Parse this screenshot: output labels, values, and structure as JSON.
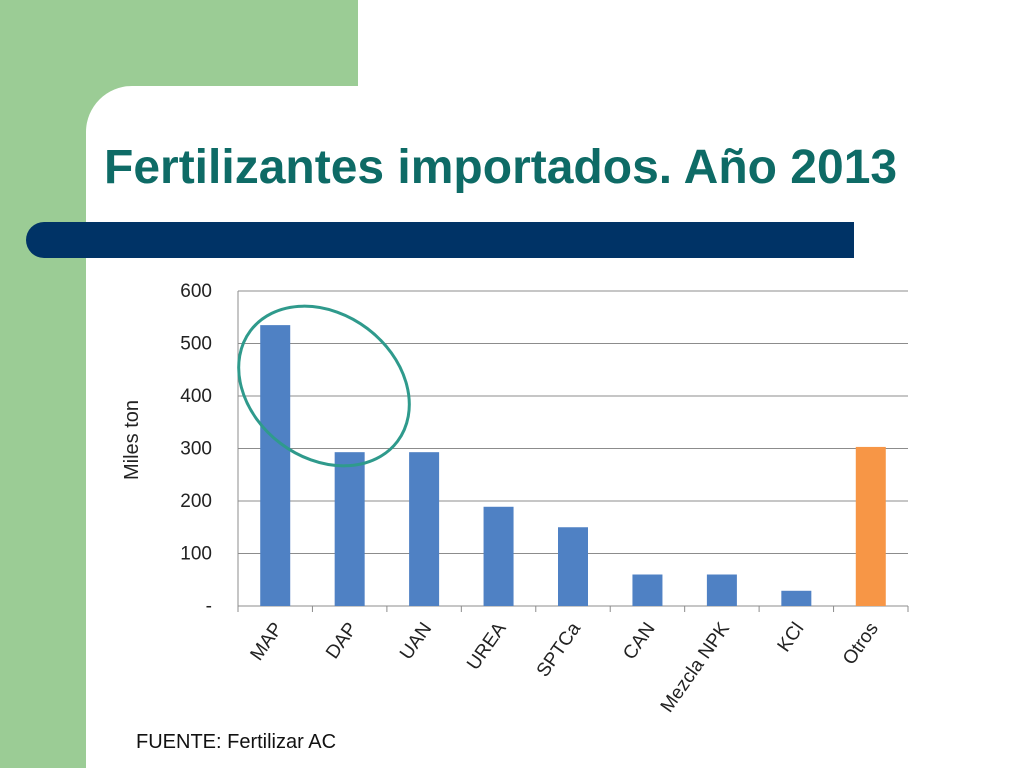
{
  "slide": {
    "title": "Fertilizantes importados. Año 2013",
    "source": "FUENTE: Fertilizar AC"
  },
  "colors": {
    "background_green": "#9bcc95",
    "title": "#0e6b66",
    "accent_bar": "#003366",
    "bar_default": "#4f81c4",
    "bar_highlight": "#f79646",
    "ellipse": "#2f9a8c"
  },
  "chart_data": {
    "type": "bar",
    "categories": [
      "MAP",
      "DAP",
      "UAN",
      "UREA",
      "SPTCa",
      "CAN",
      "Mezcla NPK",
      "KCl",
      "Otros"
    ],
    "values": [
      535,
      293,
      293,
      189,
      150,
      60,
      60,
      29,
      303
    ],
    "bar_colors": [
      "#4f81c4",
      "#4f81c4",
      "#4f81c4",
      "#4f81c4",
      "#4f81c4",
      "#4f81c4",
      "#4f81c4",
      "#4f81c4",
      "#f79646"
    ],
    "ylabel": "Miles ton",
    "ylim": [
      0,
      600
    ],
    "yticks": [
      0,
      100,
      200,
      300,
      400,
      500,
      600
    ],
    "ytick_labels": [
      "-",
      "100",
      "200",
      "300",
      "400",
      "500",
      "600"
    ],
    "grid": true,
    "annotation": {
      "type": "ellipse",
      "around": [
        "MAP",
        "DAP"
      ]
    }
  }
}
